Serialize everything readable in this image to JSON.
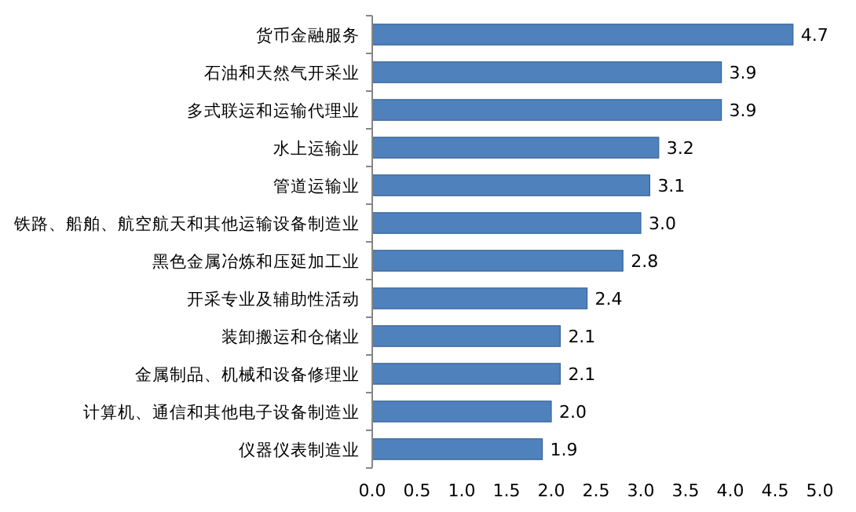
{
  "chart_data": {
    "type": "bar",
    "orientation": "horizontal",
    "categories": [
      "货币金融服务",
      "石油和天然气开采业",
      "多式联运和运输代理业",
      "水上运输业",
      "管道运输业",
      "铁路、船舶、航空航天和其他运输设备制造业",
      "黑色金属冶炼和压延加工业",
      "开采专业及辅助性活动",
      "装卸搬运和仓储业",
      "金属制品、机械和设备修理业",
      "计算机、通信和其他电子设备制造业",
      "仪器仪表制造业"
    ],
    "values": [
      4.7,
      3.9,
      3.9,
      3.2,
      3.1,
      3.0,
      2.8,
      2.4,
      2.1,
      2.1,
      2.0,
      1.9
    ],
    "value_labels": [
      "4.7",
      "3.9",
      "3.9",
      "3.2",
      "3.1",
      "3.0",
      "2.8",
      "2.4",
      "2.1",
      "2.1",
      "2.0",
      "1.9"
    ],
    "color": "#4f81bd",
    "xlim": [
      0,
      5
    ],
    "xticks": [
      {
        "value": 0,
        "label": "0.0"
      },
      {
        "value": 0.5,
        "label": "0.5"
      },
      {
        "value": 1,
        "label": "1.0"
      },
      {
        "value": 1.5,
        "label": "1.5"
      },
      {
        "value": 2,
        "label": "2.0"
      },
      {
        "value": 2.5,
        "label": "2.5"
      },
      {
        "value": 3,
        "label": "3.0"
      },
      {
        "value": 3.5,
        "label": "3.5"
      },
      {
        "value": 4,
        "label": "4.0"
      },
      {
        "value": 4.5,
        "label": "4.5"
      },
      {
        "value": 5,
        "label": "5.0"
      }
    ],
    "grid": false
  }
}
